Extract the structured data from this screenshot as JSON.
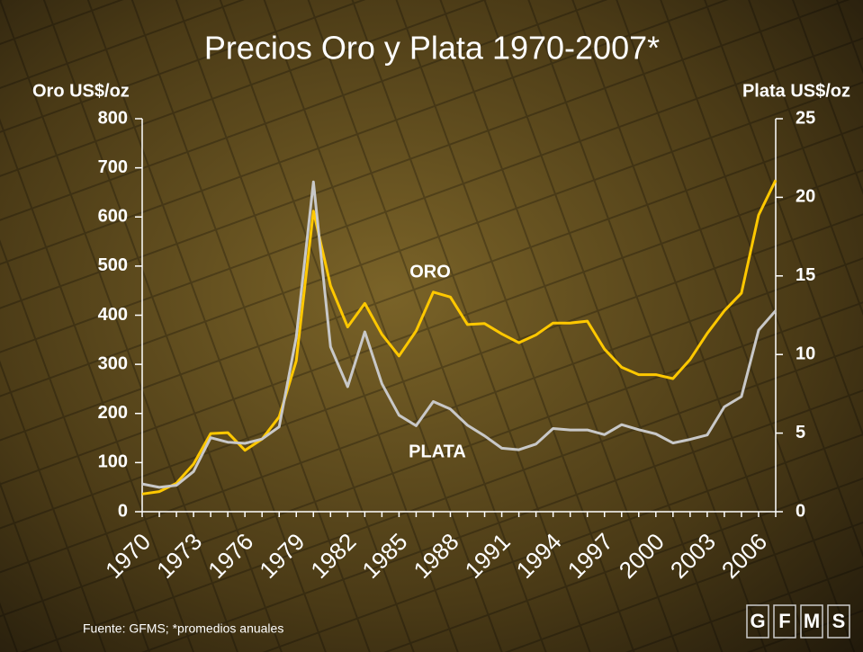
{
  "chart_data": {
    "type": "line",
    "title": "Precios Oro y Plata 1970-2007*",
    "y_label": "Oro US$/oz",
    "y2_label": "Plata US$/oz",
    "x": [
      1970,
      1971,
      1972,
      1973,
      1974,
      1975,
      1976,
      1977,
      1978,
      1979,
      1980,
      1981,
      1982,
      1983,
      1984,
      1985,
      1986,
      1987,
      1988,
      1989,
      1990,
      1991,
      1992,
      1993,
      1994,
      1995,
      1996,
      1997,
      1998,
      1999,
      2000,
      2001,
      2002,
      2003,
      2004,
      2005,
      2006,
      2007
    ],
    "xlim": [
      1970,
      2007
    ],
    "xticks": [
      1970,
      1973,
      1976,
      1979,
      1982,
      1985,
      1988,
      1991,
      1994,
      1997,
      2000,
      2003,
      2006
    ],
    "ylim": [
      0,
      800
    ],
    "yticks": [
      0,
      100,
      200,
      300,
      400,
      500,
      600,
      700,
      800
    ],
    "y2lim": [
      0,
      25
    ],
    "y2ticks": [
      0,
      5,
      10,
      15,
      20,
      25
    ],
    "series": [
      {
        "name": "ORO",
        "color": "#ffc800",
        "values": [
          36,
          41,
          58,
          97,
          159,
          161,
          125,
          148,
          193,
          307,
          612,
          460,
          376,
          424,
          361,
          317,
          368,
          447,
          437,
          381,
          383,
          362,
          344,
          360,
          384,
          384,
          388,
          331,
          294,
          279,
          279,
          271,
          310,
          363,
          409,
          445,
          604,
          675
        ]
      },
      {
        "name": "PLATA",
        "color": "#c8c8c8",
        "axis": "y2",
        "values": [
          1.77,
          1.55,
          1.68,
          2.56,
          4.71,
          4.42,
          4.35,
          4.62,
          5.4,
          11.09,
          20.98,
          10.49,
          7.95,
          11.44,
          8.14,
          6.14,
          5.47,
          7.01,
          6.53,
          5.5,
          4.82,
          4.04,
          3.94,
          4.3,
          5.29,
          5.2,
          5.2,
          4.9,
          5.54,
          5.22,
          4.95,
          4.37,
          4.6,
          4.88,
          6.67,
          7.32,
          11.55,
          12.8
        ]
      }
    ],
    "source": "Fuente: GFMS; *promedios anuales",
    "logo": [
      "G",
      "F",
      "M",
      "S"
    ]
  }
}
